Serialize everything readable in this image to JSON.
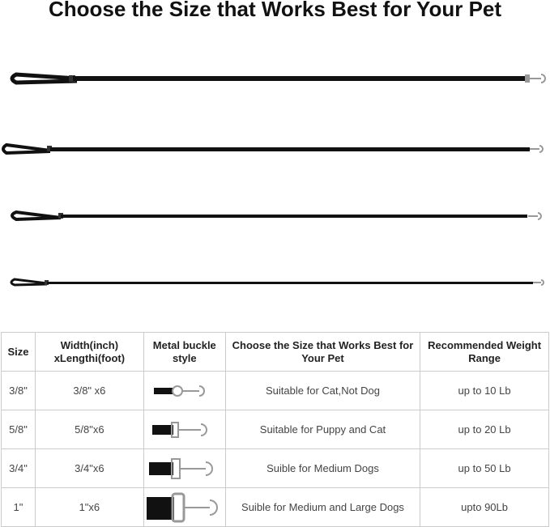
{
  "title": "Choose the Size that Works Best for Your Pet",
  "table": {
    "headers": [
      "Size",
      "Width(inch) xLengthi(foot)",
      "Metal buckle style",
      "Choose the Size that Works Best for Your Pet",
      "Recommended Weight Range"
    ],
    "rows": [
      {
        "size": "3/8\"",
        "dimensions": "3/8\" x6",
        "suitability": "Suitable for Cat,Not Dog",
        "weight": "up to 10 Lb"
      },
      {
        "size": "5/8\"",
        "dimensions": "5/8\"x6",
        "suitability": "Suitable for Puppy and Cat",
        "weight": "up to 20 Lb"
      },
      {
        "size": "3/4\"",
        "dimensions": "3/4\"x6",
        "suitability": "Suible for Medium Dogs",
        "weight": "up to 50 Lb"
      },
      {
        "size": "1\"",
        "dimensions": "1\"x6",
        "suitability": "Suible for Medium and Large Dogs",
        "weight": "upto 90Lb"
      }
    ]
  },
  "colors": {
    "leash": "#111111",
    "metal": "#9a9a9a"
  }
}
